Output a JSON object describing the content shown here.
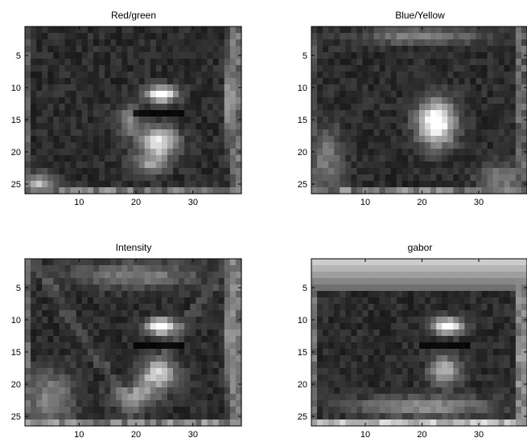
{
  "figure": {
    "background": "#ffffff",
    "colormap": "gray"
  },
  "chart_data": [
    {
      "type": "heatmap",
      "title": "Red/green",
      "columns": 38,
      "rows": 26,
      "xlim": [
        0.5,
        38.5
      ],
      "ylim": [
        26.5,
        0.5
      ],
      "y_direction": "reverse",
      "xticks": [
        10,
        20,
        30
      ],
      "yticks": [
        5,
        10,
        15,
        20,
        25
      ],
      "grid": false,
      "colorbar": false,
      "value_range": [
        0,
        1
      ],
      "blobs": [
        {
          "x": 24.5,
          "y": 11.0,
          "rx": 2.6,
          "ry": 1.2,
          "peak": 0.95
        },
        {
          "x": 24.0,
          "y": 18.5,
          "rx": 3.2,
          "ry": 2.3,
          "peak": 0.78
        },
        {
          "x": 19.0,
          "y": 15.0,
          "rx": 2.0,
          "ry": 2.5,
          "peak": 0.35
        },
        {
          "x": 22.5,
          "y": 22.0,
          "rx": 3.0,
          "ry": 1.5,
          "peak": 0.4
        },
        {
          "x": 3.0,
          "y": 25.0,
          "rx": 3.0,
          "ry": 1.5,
          "peak": 0.55
        },
        {
          "x": 36.5,
          "y": 12.0,
          "rx": 0.8,
          "ry": 7.0,
          "peak": 0.6
        }
      ],
      "dark_band_row": 14,
      "edges": {
        "left": 0.25,
        "right": 0.3,
        "bottom": 0.3
      }
    },
    {
      "type": "heatmap",
      "title": "Blue/Yellow",
      "columns": 38,
      "rows": 26,
      "xlim": [
        0.5,
        38.5
      ],
      "ylim": [
        26.5,
        0.5
      ],
      "y_direction": "reverse",
      "xticks": [
        10,
        20,
        30
      ],
      "yticks": [
        5,
        10,
        15,
        20,
        25
      ],
      "grid": false,
      "colorbar": false,
      "value_range": [
        0,
        1
      ],
      "blobs": [
        {
          "x": 22.5,
          "y": 15.5,
          "rx": 3.2,
          "ry": 3.4,
          "peak": 0.95
        },
        {
          "x": 20.0,
          "y": 2.0,
          "rx": 10.0,
          "ry": 1.2,
          "peak": 0.35
        },
        {
          "x": 3.0,
          "y": 21.0,
          "rx": 3.0,
          "ry": 5.0,
          "peak": 0.3
        },
        {
          "x": 34.0,
          "y": 24.0,
          "rx": 4.0,
          "ry": 2.0,
          "peak": 0.35
        }
      ],
      "edges": {
        "left": 0.2,
        "right": 0.25,
        "bottom": 0.3
      }
    },
    {
      "type": "heatmap",
      "title": "Intensity",
      "columns": 38,
      "rows": 26,
      "xlim": [
        0.5,
        38.5
      ],
      "ylim": [
        26.5,
        0.5
      ],
      "y_direction": "reverse",
      "xticks": [
        10,
        20,
        30
      ],
      "yticks": [
        5,
        10,
        15,
        20,
        25
      ],
      "grid": false,
      "colorbar": false,
      "value_range": [
        0,
        1
      ],
      "blobs": [
        {
          "x": 24.5,
          "y": 11.0,
          "rx": 2.6,
          "ry": 1.2,
          "peak": 0.95
        },
        {
          "x": 24.0,
          "y": 18.5,
          "rx": 3.0,
          "ry": 2.2,
          "peak": 0.65
        },
        {
          "x": 20.0,
          "y": 22.0,
          "rx": 4.0,
          "ry": 1.8,
          "peak": 0.4
        },
        {
          "x": 5.0,
          "y": 22.0,
          "rx": 4.0,
          "ry": 4.0,
          "peak": 0.35
        },
        {
          "x": 36.5,
          "y": 12.0,
          "rx": 0.8,
          "ry": 9.0,
          "peak": 0.55
        },
        {
          "x": 20.0,
          "y": 3.0,
          "rx": 11.0,
          "ry": 2.0,
          "peak": 0.32
        }
      ],
      "dark_band_row": 14,
      "diagonals": true,
      "edges": {
        "left": 0.3,
        "right": 0.35,
        "bottom": 0.35
      }
    },
    {
      "type": "heatmap",
      "title": "gabor",
      "columns": 38,
      "rows": 26,
      "xlim": [
        0.5,
        38.5
      ],
      "ylim": [
        26.5,
        0.5
      ],
      "y_direction": "reverse",
      "xticks": [
        10,
        20,
        30
      ],
      "yticks": [
        5,
        10,
        15,
        20,
        25
      ],
      "grid": false,
      "colorbar": false,
      "value_range": [
        0,
        1
      ],
      "blobs": [
        {
          "x": 24.5,
          "y": 11.0,
          "rx": 2.6,
          "ry": 1.2,
          "peak": 0.9
        },
        {
          "x": 24.0,
          "y": 18.0,
          "rx": 2.6,
          "ry": 2.2,
          "peak": 0.55
        },
        {
          "x": 20.0,
          "y": 23.5,
          "rx": 12.0,
          "ry": 1.5,
          "peak": 0.4
        }
      ],
      "top_band": {
        "row_start": 1,
        "row_end": 5,
        "level": 0.8
      },
      "dark_band_row": 14,
      "edges": {
        "left": 0.35,
        "right": 0.4,
        "bottom": 0.55
      }
    }
  ]
}
